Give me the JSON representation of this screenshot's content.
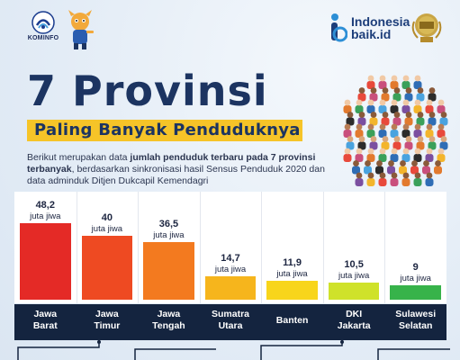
{
  "header": {
    "kominfo_label": "KOMINFO",
    "brand_line1": "Indonesia",
    "brand_line2": "baik.id"
  },
  "title": "7 Provinsi",
  "subtitle": "Paling Banyak Penduduknya",
  "description": {
    "part1": "Berikut merupakan data ",
    "bold1": "jumlah penduduk terbaru pada 7 provinsi terbanyak",
    "part2": ", berdasarkan sinkronisasi hasil Sensus Penduduk 2020 dan data adminduk Ditjen Dukcapil Kemendagri"
  },
  "colors": {
    "title": "#1c3461",
    "highlight": "#f6c428",
    "label_band": "#14243f"
  },
  "chart_data": {
    "type": "bar",
    "categories": [
      "Jawa Barat",
      "Jawa Timur",
      "Jawa Tengah",
      "Sumatra Utara",
      "Banten",
      "DKI Jakarta",
      "Sulawesi Selatan"
    ],
    "label_lines": [
      [
        "Jawa",
        "Barat"
      ],
      [
        "Jawa",
        "Timur"
      ],
      [
        "Jawa",
        "Tengah"
      ],
      [
        "Sumatra",
        "Utara"
      ],
      [
        "Banten"
      ],
      [
        "DKI",
        "Jakarta"
      ],
      [
        "Sulawesi",
        "Selatan"
      ]
    ],
    "values": [
      48.2,
      40,
      36.5,
      14.7,
      11.9,
      10.5,
      9
    ],
    "value_labels": [
      "48,2",
      "40",
      "36,5",
      "14,7",
      "11,9",
      "10,5",
      "9"
    ],
    "unit": "juta jiwa",
    "colors": [
      "#e42a26",
      "#ee4a22",
      "#f37a1f",
      "#f6b51c",
      "#f8d51b",
      "#cfe22a",
      "#37b34a"
    ]
  }
}
